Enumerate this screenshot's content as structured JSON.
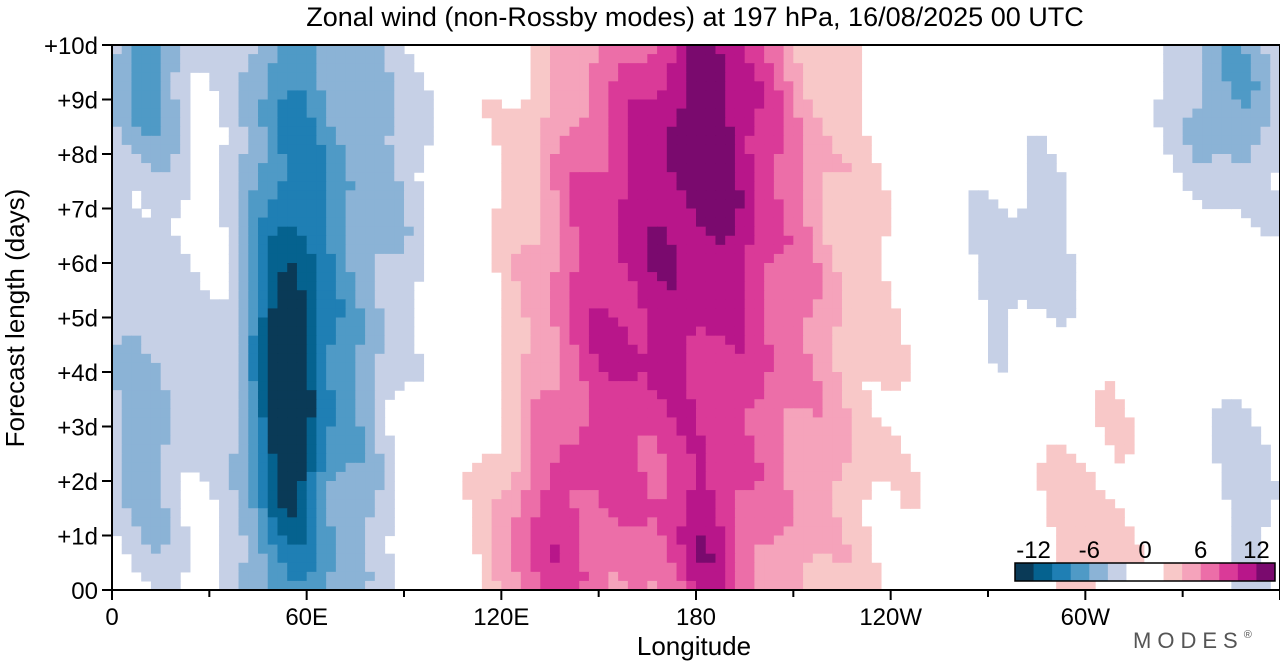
{
  "chart_data": {
    "type": "heatmap",
    "title": "Zonal wind (non-Rossby modes) at 197 hPa,  16/08/2025  00 UTC",
    "xlabel": "Longitude",
    "ylabel": "Forecast length (days)",
    "x_ticks": [
      "0",
      "60E",
      "120E",
      "180",
      "120W",
      "60W"
    ],
    "y_ticks": [
      "00",
      "+1d",
      "+2d",
      "+3d",
      "+4d",
      "+5d",
      "+6d",
      "+7d",
      "+8d",
      "+9d",
      "+10d"
    ],
    "colorbar": {
      "ticks": [
        "-12",
        "-6",
        "0",
        "6",
        "12"
      ],
      "levels": [
        -14,
        -12,
        -10,
        -8,
        -6,
        -4,
        -2,
        0,
        2,
        4,
        6,
        8,
        10,
        12,
        14
      ],
      "colors": [
        "#0a3a57",
        "#05628f",
        "#1f7fb4",
        "#4f9ac6",
        "#8bb3d6",
        "#c6d0e6",
        "#ffffff",
        "#ffffff",
        "#f8c8c8",
        "#f5a3bb",
        "#ec6ea8",
        "#da3a98",
        "#b8168a",
        "#7a0a6e"
      ]
    },
    "brand": "MODES",
    "brand_mark": "®",
    "features": [
      {
        "lon": 10,
        "day": 9.5,
        "sx": 10,
        "sy": 1.4,
        "amp": -7
      },
      {
        "lon": 10,
        "day": 3.0,
        "sx": 12,
        "sy": 2.5,
        "amp": -5
      },
      {
        "lon": 54,
        "day": 3.6,
        "sx": 7,
        "sy": 1.8,
        "amp": -7
      },
      {
        "lon": 55,
        "day": 5.0,
        "sx": 12,
        "sy": 7.0,
        "amp": -9
      },
      {
        "lon": 78,
        "day": 6.0,
        "sx": 9,
        "sy": 6.0,
        "amp": -4
      },
      {
        "lon": 93,
        "day": 8.0,
        "sx": 6,
        "sy": 2.0,
        "amp": -2.5
      },
      {
        "lon": 132,
        "day": 0.5,
        "sx": 12,
        "sy": 1.5,
        "amp": 6
      },
      {
        "lon": 150,
        "day": 5.5,
        "sx": 18,
        "sy": 4.0,
        "amp": 6
      },
      {
        "lon": 185,
        "day": 9.0,
        "sx": 14,
        "sy": 2.5,
        "amp": 7
      },
      {
        "lon": 180,
        "day": 5.0,
        "sx": 28,
        "sy": 5.5,
        "amp": 6
      },
      {
        "lon": 183,
        "day": 0.6,
        "sx": 8,
        "sy": 1.2,
        "amp": 5
      },
      {
        "lon": 210,
        "day": 4.0,
        "sx": 25,
        "sy": 5.0,
        "amp": 3
      },
      {
        "lon": 283,
        "day": 6.0,
        "sx": 18,
        "sy": 1.5,
        "amp": -3.5
      },
      {
        "lon": 300,
        "day": 1.5,
        "sx": 12,
        "sy": 2.5,
        "amp": 3
      },
      {
        "lon": 345,
        "day": 9.2,
        "sx": 14,
        "sy": 1.5,
        "amp": -6
      },
      {
        "lon": 350,
        "day": 2.0,
        "sx": 10,
        "sy": 2.0,
        "amp": -3
      }
    ]
  }
}
